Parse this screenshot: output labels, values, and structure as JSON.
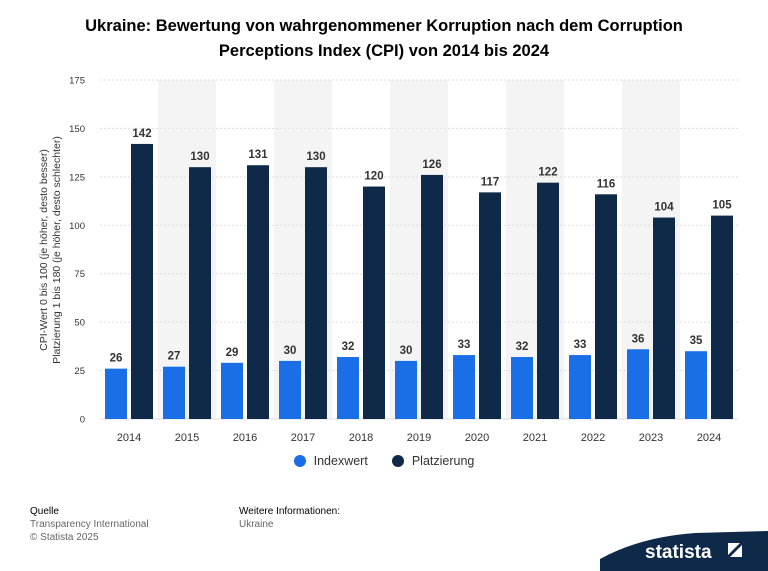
{
  "title_lines": [
    "Ukraine: Bewertung von wahrgenommener Korruption nach dem Corruption",
    "Perceptions Index (CPI) von 2014 bis 2024"
  ],
  "chart_data": {
    "type": "bar",
    "categories": [
      "2014",
      "2015",
      "2016",
      "2017",
      "2018",
      "2019",
      "2020",
      "2021",
      "2022",
      "2023",
      "2024"
    ],
    "series": [
      {
        "name": "Indexwert",
        "color": "#1a6fe6",
        "values": [
          26,
          27,
          29,
          30,
          32,
          30,
          33,
          32,
          33,
          36,
          35
        ]
      },
      {
        "name": "Platzierung",
        "color": "#0f2a48",
        "values": [
          142,
          130,
          131,
          130,
          120,
          126,
          117,
          122,
          116,
          104,
          105
        ]
      }
    ],
    "ylim": [
      0,
      175
    ],
    "yticks": [
      0,
      25,
      50,
      75,
      100,
      125,
      150,
      175
    ],
    "ylabel_lines": [
      "CPI-Wert 0 bis 100 (je höher, desto besser)",
      "Platzierung 1 bis 180 (je höher, desto schlechter)"
    ],
    "xlabel": "",
    "grid": true,
    "legend": "bottom-center"
  },
  "footer": {
    "source_heading": "Quelle",
    "source_lines": [
      "Transparency International",
      "© Statista 2025"
    ],
    "info_heading": "Weitere Informationen:",
    "info_lines": [
      "Ukraine"
    ]
  },
  "logo": {
    "text": "statista"
  },
  "colors": {
    "band": "#f4f4f4",
    "grid": "#dddddd",
    "axis_text": "#333333",
    "label_text": "#333333"
  }
}
